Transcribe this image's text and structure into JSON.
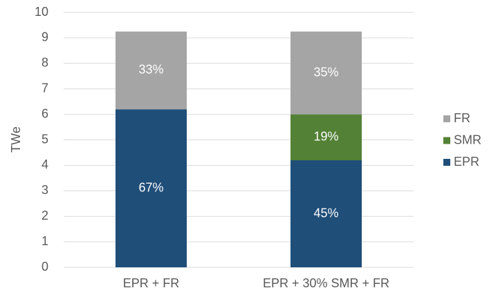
{
  "chart_data": {
    "type": "stacked_bar",
    "y_label": "TWe",
    "categories": [
      "EPR + FR",
      "EPR + 30% SMR + FR"
    ],
    "series": [
      {
        "name": "EPR",
        "color": "#1f4e79",
        "values": [
          6.2,
          4.2
        ],
        "value_labels": [
          "67%",
          "45%"
        ]
      },
      {
        "name": "SMR",
        "color": "#538135",
        "values": [
          null,
          1.8
        ],
        "value_labels": [
          null,
          "19%"
        ]
      },
      {
        "name": "FR",
        "color": "#a5a5a5",
        "values": [
          3.05,
          3.25
        ],
        "value_labels": [
          "33%",
          "35%"
        ]
      }
    ],
    "ylim": [
      0,
      10
    ],
    "yticks": [
      0,
      1,
      2,
      3,
      4,
      5,
      6,
      7,
      8,
      9,
      10
    ],
    "grid": true,
    "legend": "right"
  }
}
